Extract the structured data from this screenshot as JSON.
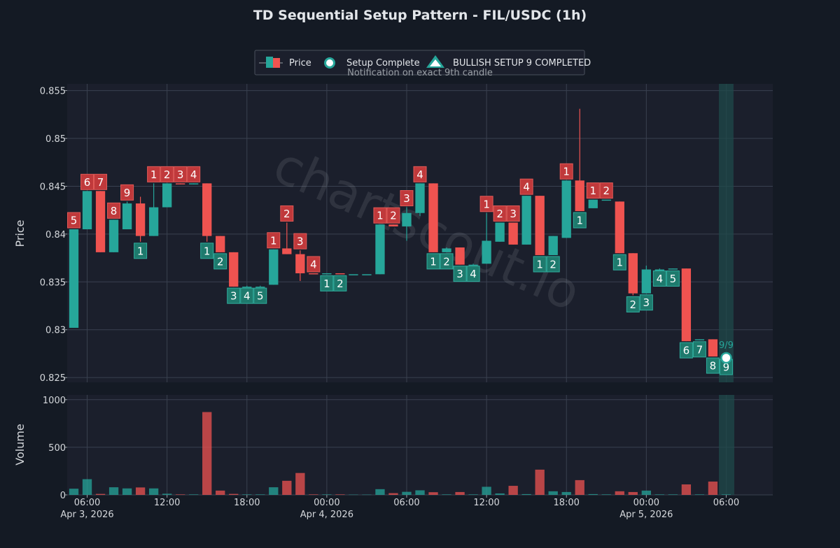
{
  "chart_data": {
    "type": "candlestick",
    "title": "TD Sequential Setup Pattern - FIL/USDC (1h)",
    "watermark": "chartscout.io",
    "ylabel_price": "Price",
    "ylabel_volume": "Volume",
    "price_ylim": [
      0.8245,
      0.8557
    ],
    "price_ticks": [
      0.825,
      0.83,
      0.835,
      0.84,
      0.845,
      0.85,
      0.855
    ],
    "price_tick_labels": [
      "0.825",
      "0.83",
      "0.835",
      "0.84",
      "0.845",
      "0.85",
      "0.855"
    ],
    "volume_ylim": [
      0,
      1050
    ],
    "volume_ticks": [
      0,
      500,
      1000
    ],
    "volume_tick_labels": [
      "0",
      "500",
      "1000"
    ],
    "x_range": [
      -0.5,
      52.5
    ],
    "x_ticks": [
      {
        "index": 1,
        "time": "06:00",
        "date": "Apr 3, 2026"
      },
      {
        "index": 7,
        "time": "12:00",
        "date": ""
      },
      {
        "index": 13,
        "time": "18:00",
        "date": ""
      },
      {
        "index": 19,
        "time": "00:00",
        "date": "Apr 4, 2026"
      },
      {
        "index": 25,
        "time": "06:00",
        "date": ""
      },
      {
        "index": 31,
        "time": "12:00",
        "date": ""
      },
      {
        "index": 37,
        "time": "18:00",
        "date": ""
      },
      {
        "index": 43,
        "time": "00:00",
        "date": "Apr 5, 2026"
      },
      {
        "index": 49,
        "time": "06:00",
        "date": ""
      }
    ],
    "legend": {
      "price": "Price",
      "setup_complete": "Setup Complete",
      "bullish": "BULLISH SETUP 9 COMPLETED",
      "subtitle": "Notification on exact 9th candle"
    },
    "colors": {
      "up": "#26a69a",
      "down": "#ef5350",
      "up_label": "#1e7a6d",
      "down_label": "#c0393b",
      "highlight": "#1f4a4a"
    },
    "highlight": {
      "index": 49,
      "label": "9/9"
    },
    "candles": [
      {
        "o": 0.8302,
        "h": 0.8405,
        "l": 0.8302,
        "c": 0.8405,
        "v": 65,
        "td": "5",
        "tdc": "r"
      },
      {
        "o": 0.8405,
        "h": 0.8445,
        "l": 0.8405,
        "c": 0.8445,
        "v": 165,
        "td": "6",
        "tdc": "r"
      },
      {
        "o": 0.8445,
        "h": 0.8445,
        "l": 0.8381,
        "c": 0.8381,
        "v": 10,
        "td": "7",
        "tdc": "r"
      },
      {
        "o": 0.8381,
        "h": 0.8415,
        "l": 0.8381,
        "c": 0.8415,
        "v": 80,
        "td": "8",
        "tdc": "r"
      },
      {
        "o": 0.8405,
        "h": 0.8434,
        "l": 0.8405,
        "c": 0.8432,
        "v": 68,
        "td": "9",
        "tdc": "r"
      },
      {
        "o": 0.8432,
        "h": 0.8439,
        "l": 0.8392,
        "c": 0.8398,
        "v": 78,
        "td": "1",
        "tdc": "g"
      },
      {
        "o": 0.8398,
        "h": 0.8453,
        "l": 0.8398,
        "c": 0.8428,
        "v": 68,
        "td": "1",
        "tdc": "r"
      },
      {
        "o": 0.8428,
        "h": 0.8453,
        "l": 0.8428,
        "c": 0.8453,
        "v": 12,
        "td": "2",
        "tdc": "r"
      },
      {
        "o": 0.8453,
        "h": 0.8453,
        "l": 0.8452,
        "c": 0.8452,
        "v": 5,
        "td": "3",
        "tdc": "r"
      },
      {
        "o": 0.8452,
        "h": 0.8453,
        "l": 0.8452,
        "c": 0.8453,
        "v": 5,
        "td": "4",
        "tdc": "r"
      },
      {
        "o": 0.8453,
        "h": 0.8453,
        "l": 0.8392,
        "c": 0.8398,
        "v": 870,
        "td": "1",
        "tdc": "g"
      },
      {
        "o": 0.8398,
        "h": 0.8398,
        "l": 0.8381,
        "c": 0.8381,
        "v": 45,
        "td": "2",
        "tdc": "g"
      },
      {
        "o": 0.8381,
        "h": 0.8381,
        "l": 0.8345,
        "c": 0.8345,
        "v": 10,
        "td": "3",
        "tdc": "g"
      },
      {
        "o": 0.8345,
        "h": 0.8346,
        "l": 0.8345,
        "c": 0.8345,
        "v": 5,
        "td": "4",
        "tdc": "g"
      },
      {
        "o": 0.8345,
        "h": 0.8346,
        "l": 0.8345,
        "c": 0.8345,
        "v": 5,
        "td": "5",
        "tdc": "g"
      },
      {
        "o": 0.8347,
        "h": 0.8384,
        "l": 0.8347,
        "c": 0.8384,
        "v": 80,
        "td": "1",
        "tdc": "r"
      },
      {
        "o": 0.8385,
        "h": 0.8412,
        "l": 0.8379,
        "c": 0.8379,
        "v": 148,
        "td": "2",
        "tdc": "r"
      },
      {
        "o": 0.8379,
        "h": 0.8383,
        "l": 0.8351,
        "c": 0.8359,
        "v": 230,
        "td": "3",
        "tdc": "r"
      },
      {
        "o": 0.8359,
        "h": 0.8359,
        "l": 0.8358,
        "c": 0.8358,
        "v": 5,
        "td": "4",
        "tdc": "r"
      },
      {
        "o": 0.8358,
        "h": 0.8359,
        "l": 0.8358,
        "c": 0.8359,
        "v": 5,
        "td": "1",
        "tdc": "g"
      },
      {
        "o": 0.8359,
        "h": 0.8359,
        "l": 0.8358,
        "c": 0.8358,
        "v": 5,
        "td": "2",
        "tdc": "g"
      },
      {
        "o": 0.8358,
        "h": 0.8358,
        "l": 0.8358,
        "c": 0.8358,
        "v": 3,
        "td": "",
        "tdc": ""
      },
      {
        "o": 0.8358,
        "h": 0.8358,
        "l": 0.8358,
        "c": 0.8358,
        "v": 3,
        "td": "",
        "tdc": ""
      },
      {
        "o": 0.8358,
        "h": 0.841,
        "l": 0.8358,
        "c": 0.841,
        "v": 60,
        "td": "1",
        "tdc": "r"
      },
      {
        "o": 0.841,
        "h": 0.841,
        "l": 0.8408,
        "c": 0.8408,
        "v": 18,
        "td": "2",
        "tdc": "r"
      },
      {
        "o": 0.8408,
        "h": 0.8428,
        "l": 0.8393,
        "c": 0.8422,
        "v": 32,
        "td": "3",
        "tdc": "r"
      },
      {
        "o": 0.8422,
        "h": 0.8453,
        "l": 0.8419,
        "c": 0.8453,
        "v": 48,
        "td": "4",
        "tdc": "r"
      },
      {
        "o": 0.8453,
        "h": 0.8453,
        "l": 0.8381,
        "c": 0.8381,
        "v": 28,
        "td": "1",
        "tdc": "g"
      },
      {
        "o": 0.8381,
        "h": 0.8386,
        "l": 0.8381,
        "c": 0.8385,
        "v": 5,
        "td": "2",
        "tdc": "g"
      },
      {
        "o": 0.8386,
        "h": 0.8386,
        "l": 0.8368,
        "c": 0.8368,
        "v": 30,
        "td": "3",
        "tdc": "g"
      },
      {
        "o": 0.8368,
        "h": 0.8369,
        "l": 0.8368,
        "c": 0.8368,
        "v": 5,
        "td": "4",
        "tdc": "g"
      },
      {
        "o": 0.8369,
        "h": 0.8422,
        "l": 0.8369,
        "c": 0.8393,
        "v": 85,
        "td": "1",
        "tdc": "r"
      },
      {
        "o": 0.8392,
        "h": 0.8412,
        "l": 0.8392,
        "c": 0.8412,
        "v": 15,
        "td": "2",
        "tdc": "r"
      },
      {
        "o": 0.8412,
        "h": 0.8412,
        "l": 0.8389,
        "c": 0.8389,
        "v": 95,
        "td": "3",
        "tdc": "r"
      },
      {
        "o": 0.8389,
        "h": 0.844,
        "l": 0.8389,
        "c": 0.844,
        "v": 8,
        "td": "4",
        "tdc": "r"
      },
      {
        "o": 0.844,
        "h": 0.844,
        "l": 0.8378,
        "c": 0.8378,
        "v": 265,
        "td": "1",
        "tdc": "g"
      },
      {
        "o": 0.8378,
        "h": 0.8398,
        "l": 0.8378,
        "c": 0.8398,
        "v": 38,
        "td": "2",
        "tdc": "g"
      },
      {
        "o": 0.8396,
        "h": 0.8456,
        "l": 0.8396,
        "c": 0.8456,
        "v": 30,
        "td": "1",
        "tdc": "r"
      },
      {
        "o": 0.8456,
        "h": 0.8531,
        "l": 0.8424,
        "c": 0.8424,
        "v": 155,
        "td": "1",
        "tdc": "g"
      },
      {
        "o": 0.8427,
        "h": 0.8436,
        "l": 0.8427,
        "c": 0.8436,
        "v": 8,
        "td": "1",
        "tdc": "r"
      },
      {
        "o": 0.8436,
        "h": 0.8436,
        "l": 0.8436,
        "c": 0.8436,
        "v": 5,
        "td": "2",
        "tdc": "r"
      },
      {
        "o": 0.8434,
        "h": 0.8434,
        "l": 0.838,
        "c": 0.838,
        "v": 38,
        "td": "1",
        "tdc": "g"
      },
      {
        "o": 0.838,
        "h": 0.838,
        "l": 0.8336,
        "c": 0.8338,
        "v": 30,
        "td": "2",
        "tdc": "g"
      },
      {
        "o": 0.8338,
        "h": 0.8367,
        "l": 0.8338,
        "c": 0.8363,
        "v": 45,
        "td": "3",
        "tdc": "g"
      },
      {
        "o": 0.8363,
        "h": 0.8364,
        "l": 0.8363,
        "c": 0.8363,
        "v": 5,
        "td": "4",
        "tdc": "g"
      },
      {
        "o": 0.8363,
        "h": 0.8364,
        "l": 0.8363,
        "c": 0.8364,
        "v": 5,
        "td": "5",
        "tdc": "g"
      },
      {
        "o": 0.8364,
        "h": 0.8364,
        "l": 0.8288,
        "c": 0.8288,
        "v": 110,
        "td": "6",
        "tdc": "g"
      },
      {
        "o": 0.8289,
        "h": 0.829,
        "l": 0.8289,
        "c": 0.829,
        "v": 5,
        "td": "7",
        "tdc": "g"
      },
      {
        "o": 0.829,
        "h": 0.829,
        "l": 0.8272,
        "c": 0.8272,
        "v": 140,
        "td": "8",
        "tdc": "g"
      },
      {
        "o": 0.8272,
        "h": 0.8273,
        "l": 0.8272,
        "c": 0.8272,
        "v": 5,
        "td": "9",
        "tdc": "g"
      }
    ]
  }
}
